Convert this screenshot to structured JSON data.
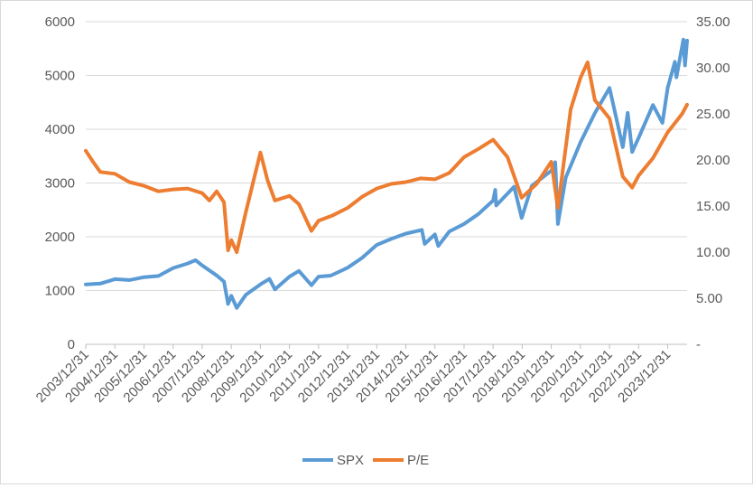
{
  "chart_data": {
    "type": "line",
    "title": "",
    "xlabel": "",
    "ylabel": "",
    "y2label": "",
    "x_start": "2003-12-31",
    "x_end": "2024-08-31",
    "x_tick_labels": [
      "2003/12/31",
      "2004/12/31",
      "2005/12/31",
      "2006/12/31",
      "2007/12/31",
      "2008/12/31",
      "2009/12/31",
      "2010/12/31",
      "2011/12/31",
      "2012/12/31",
      "2013/12/31",
      "2014/12/31",
      "2015/12/31",
      "2016/12/31",
      "2017/12/31",
      "2018/12/31",
      "2019/12/31",
      "2020/12/31",
      "2021/12/31",
      "2022/12/31",
      "2023/12/31"
    ],
    "y_left": {
      "ylim": [
        0,
        6000
      ],
      "ticks": [
        "0",
        "1000",
        "2000",
        "3000",
        "4000",
        "5000",
        "6000"
      ]
    },
    "y_right": {
      "ylim": [
        0,
        35
      ],
      "ticks": [
        "-",
        "5.00",
        "10.00",
        "15.00",
        "20.00",
        "25.00",
        "30.00",
        "35.00"
      ]
    },
    "grid": "horizontal",
    "legend": "bottom",
    "series": [
      {
        "name": "SPX",
        "axis": "left",
        "color": "#5b9bd5",
        "points": [
          [
            "2003-12-31",
            1112
          ],
          [
            "2004-06-30",
            1130
          ],
          [
            "2004-12-31",
            1212
          ],
          [
            "2005-06-30",
            1195
          ],
          [
            "2005-12-31",
            1248
          ],
          [
            "2006-06-30",
            1270
          ],
          [
            "2006-12-31",
            1418
          ],
          [
            "2007-06-30",
            1503
          ],
          [
            "2007-10-09",
            1565
          ],
          [
            "2007-12-31",
            1468
          ],
          [
            "2008-06-30",
            1280
          ],
          [
            "2008-09-30",
            1166
          ],
          [
            "2008-11-20",
            752
          ],
          [
            "2008-12-31",
            903
          ],
          [
            "2009-03-09",
            677
          ],
          [
            "2009-06-30",
            919
          ],
          [
            "2009-12-31",
            1115
          ],
          [
            "2010-04-23",
            1217
          ],
          [
            "2010-07-02",
            1022
          ],
          [
            "2010-12-31",
            1258
          ],
          [
            "2011-04-29",
            1364
          ],
          [
            "2011-10-03",
            1099
          ],
          [
            "2011-12-31",
            1258
          ],
          [
            "2012-06-01",
            1278
          ],
          [
            "2012-12-31",
            1426
          ],
          [
            "2013-06-30",
            1606
          ],
          [
            "2013-12-31",
            1848
          ],
          [
            "2014-06-30",
            1960
          ],
          [
            "2014-12-31",
            2059
          ],
          [
            "2015-07-20",
            2128
          ],
          [
            "2015-08-25",
            1868
          ],
          [
            "2015-12-31",
            2044
          ],
          [
            "2016-02-11",
            1829
          ],
          [
            "2016-06-30",
            2099
          ],
          [
            "2016-12-31",
            2239
          ],
          [
            "2017-06-30",
            2423
          ],
          [
            "2017-12-31",
            2674
          ],
          [
            "2018-01-26",
            2873
          ],
          [
            "2018-02-08",
            2581
          ],
          [
            "2018-09-20",
            2931
          ],
          [
            "2018-12-24",
            2351
          ],
          [
            "2019-04-30",
            2946
          ],
          [
            "2019-12-31",
            3231
          ],
          [
            "2020-02-19",
            3386
          ],
          [
            "2020-03-23",
            2237
          ],
          [
            "2020-06-30",
            3100
          ],
          [
            "2020-12-31",
            3756
          ],
          [
            "2021-06-30",
            4298
          ],
          [
            "2021-12-31",
            4766
          ],
          [
            "2022-06-16",
            3667
          ],
          [
            "2022-08-16",
            4305
          ],
          [
            "2022-10-12",
            3577
          ],
          [
            "2022-12-31",
            3840
          ],
          [
            "2023-06-30",
            4450
          ],
          [
            "2023-10-27",
            4117
          ],
          [
            "2023-12-31",
            4770
          ],
          [
            "2024-03-31",
            5254
          ],
          [
            "2024-04-19",
            4967
          ],
          [
            "2024-07-16",
            5667
          ],
          [
            "2024-08-05",
            5186
          ],
          [
            "2024-08-31",
            5648
          ]
        ]
      },
      {
        "name": "P/E",
        "axis": "right",
        "color": "#ed7d31",
        "points": [
          [
            "2003-12-31",
            21.0
          ],
          [
            "2004-03-31",
            19.8
          ],
          [
            "2004-06-30",
            18.7
          ],
          [
            "2004-12-31",
            18.5
          ],
          [
            "2005-06-30",
            17.6
          ],
          [
            "2005-12-31",
            17.2
          ],
          [
            "2006-06-30",
            16.6
          ],
          [
            "2006-12-31",
            16.8
          ],
          [
            "2007-06-30",
            16.9
          ],
          [
            "2007-12-31",
            16.4
          ],
          [
            "2008-03-31",
            15.6
          ],
          [
            "2008-06-30",
            16.6
          ],
          [
            "2008-09-30",
            15.4
          ],
          [
            "2008-11-20",
            10.2
          ],
          [
            "2008-12-31",
            11.3
          ],
          [
            "2009-03-09",
            10.0
          ],
          [
            "2009-06-30",
            14.3
          ],
          [
            "2009-12-31",
            20.8
          ],
          [
            "2010-03-31",
            17.8
          ],
          [
            "2010-07-02",
            15.6
          ],
          [
            "2010-12-31",
            16.1
          ],
          [
            "2011-04-29",
            15.2
          ],
          [
            "2011-10-03",
            12.3
          ],
          [
            "2011-12-31",
            13.4
          ],
          [
            "2012-06-30",
            14.0
          ],
          [
            "2012-12-31",
            14.8
          ],
          [
            "2013-06-30",
            16.0
          ],
          [
            "2013-12-31",
            16.9
          ],
          [
            "2014-06-30",
            17.4
          ],
          [
            "2014-12-31",
            17.6
          ],
          [
            "2015-06-30",
            18.0
          ],
          [
            "2015-12-31",
            17.9
          ],
          [
            "2016-06-30",
            18.6
          ],
          [
            "2016-12-31",
            20.3
          ],
          [
            "2017-06-30",
            21.2
          ],
          [
            "2017-12-31",
            22.2
          ],
          [
            "2018-06-30",
            20.3
          ],
          [
            "2018-12-24",
            15.9
          ],
          [
            "2019-06-30",
            17.4
          ],
          [
            "2019-12-31",
            19.8
          ],
          [
            "2020-03-23",
            14.8
          ],
          [
            "2020-08-31",
            25.5
          ],
          [
            "2020-12-31",
            28.9
          ],
          [
            "2021-03-31",
            30.6
          ],
          [
            "2021-06-30",
            26.5
          ],
          [
            "2021-12-31",
            24.5
          ],
          [
            "2022-06-16",
            18.2
          ],
          [
            "2022-10-12",
            17.0
          ],
          [
            "2022-12-31",
            18.3
          ],
          [
            "2023-06-30",
            20.2
          ],
          [
            "2023-12-31",
            23.0
          ],
          [
            "2024-06-30",
            25.0
          ],
          [
            "2024-08-31",
            26.0
          ]
        ]
      }
    ]
  }
}
